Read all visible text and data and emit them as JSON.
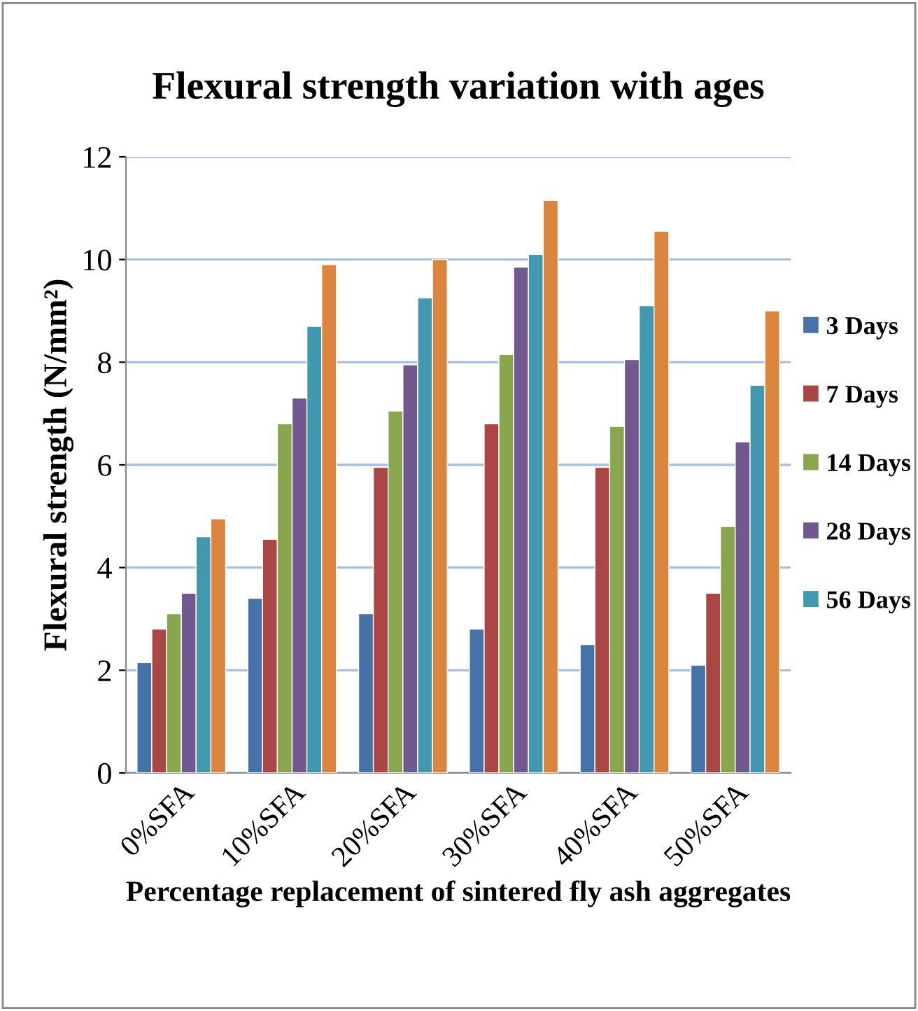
{
  "chart_data": {
    "type": "bar",
    "title": "Flexural strength variation with ages",
    "xlabel": "Percentage replacement of sintered fly ash aggregates",
    "ylabel": "Flexural strength (N/mm²)",
    "categories": [
      "0%SFA",
      "10%SFA",
      "20%SFA",
      "30%SFA",
      "40%SFA",
      "50%SFA"
    ],
    "series": [
      {
        "name": "3 Days",
        "color": "#4572a7",
        "values": [
          2.15,
          3.4,
          3.1,
          2.8,
          2.5,
          2.1
        ]
      },
      {
        "name": "7 Days",
        "color": "#aa4643",
        "values": [
          2.8,
          4.55,
          5.95,
          6.8,
          5.95,
          3.5
        ]
      },
      {
        "name": "14 Days",
        "color": "#89a54e",
        "values": [
          3.1,
          6.8,
          7.05,
          8.15,
          6.75,
          4.8
        ]
      },
      {
        "name": "28 Days",
        "color": "#71588f",
        "values": [
          3.5,
          7.3,
          7.95,
          9.85,
          8.05,
          6.45
        ]
      },
      {
        "name": "56 Days",
        "color": "#4198af",
        "values": [
          4.6,
          8.7,
          9.25,
          10.1,
          9.1,
          7.55
        ]
      },
      {
        "color": "#db843d",
        "values": [
          4.95,
          9.9,
          10.0,
          11.15,
          10.55,
          9.0
        ]
      }
    ],
    "ylim": [
      0,
      12
    ],
    "yticks": [
      0,
      2,
      4,
      6,
      8,
      10,
      12
    ],
    "grid": "y",
    "legend": "right"
  }
}
